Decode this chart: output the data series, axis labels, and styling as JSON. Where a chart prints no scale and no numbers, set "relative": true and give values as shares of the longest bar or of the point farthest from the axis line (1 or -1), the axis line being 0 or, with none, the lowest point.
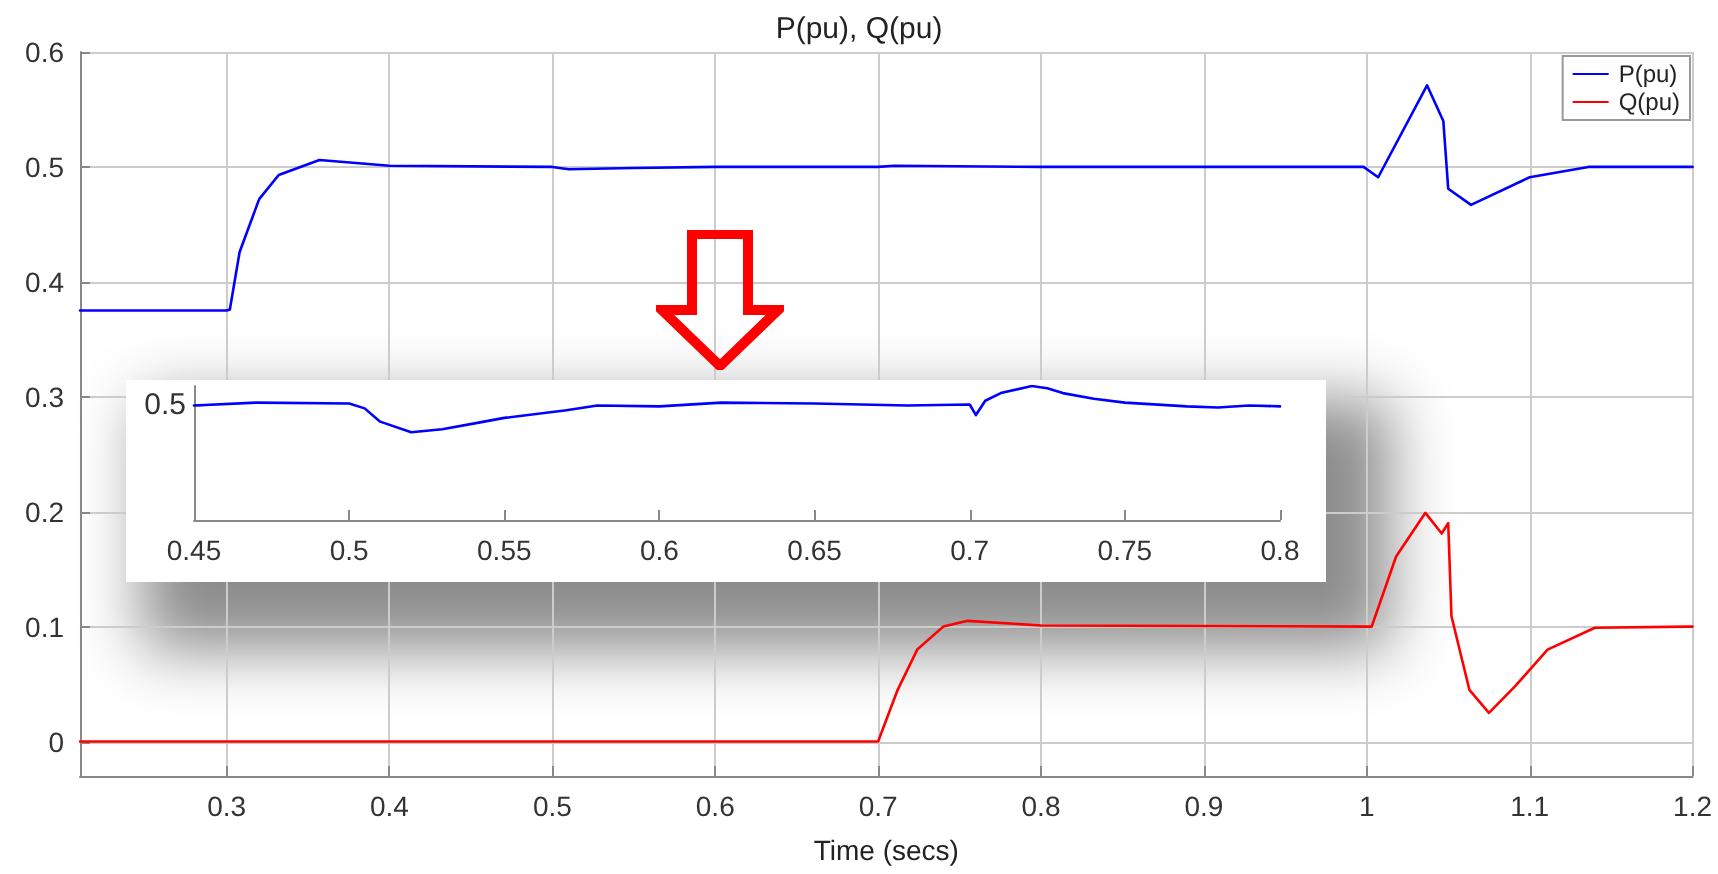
{
  "chart_data": [
    {
      "type": "line",
      "title": "P(pu), Q(pu)",
      "xlabel": "Time (secs)",
      "x": [
        0.21,
        0.3,
        0.302,
        0.308,
        0.32,
        0.332,
        0.357,
        0.4,
        0.5,
        0.51,
        0.55,
        0.6,
        0.7,
        0.71,
        0.8,
        0.9,
        0.998,
        1.007,
        1.037,
        1.047,
        1.05,
        1.064,
        1.1,
        1.136,
        1.2
      ],
      "series": [
        {
          "name": "P(pu)",
          "color": "#0000ff",
          "values": [
            0.375,
            0.375,
            0.376,
            0.426,
            0.472,
            0.493,
            0.506,
            0.501,
            0.5,
            0.498,
            0.499,
            0.5,
            0.5,
            0.501,
            0.5,
            0.5,
            0.5,
            0.491,
            0.571,
            0.54,
            0.481,
            0.467,
            0.491,
            0.5,
            0.5
          ]
        },
        {
          "name": "Q(pu)",
          "color": "#ff0000",
          "x": [
            0.21,
            0.3,
            0.7,
            0.712,
            0.724,
            0.74,
            0.755,
            0.8,
            1.003,
            1.018,
            1.036,
            1.046,
            1.05,
            1.052,
            1.063,
            1.075,
            1.091,
            1.111,
            1.14,
            1.197,
            1.2
          ],
          "values": [
            0,
            0,
            0,
            0.045,
            0.08,
            0.1,
            0.105,
            0.101,
            0.1,
            0.161,
            0.199,
            0.181,
            0.19,
            0.109,
            0.045,
            0.025,
            0.048,
            0.08,
            0.099,
            0.1,
            0.1
          ]
        }
      ],
      "xlim": [
        0.21,
        1.2
      ],
      "xticks": [
        0.3,
        0.4,
        0.5,
        0.6,
        0.7,
        0.8,
        0.9,
        1,
        1.1,
        1.2
      ],
      "ylim": [
        -0.03,
        0.6
      ],
      "yticks": [
        0,
        0.1,
        0.2,
        0.3,
        0.4,
        0.5,
        0.6
      ],
      "grid": true,
      "legend": "top right",
      "marker": "none",
      "line_style": "solid"
    },
    {
      "type": "line",
      "relative": true,
      "tick_labels": "x",
      "grid": false,
      "marker": "none",
      "x": [
        0.45,
        0.47,
        0.5,
        0.505,
        0.51,
        0.52,
        0.53,
        0.54,
        0.55,
        0.57,
        0.58,
        0.6,
        0.62,
        0.65,
        0.68,
        0.7,
        0.702,
        0.705,
        0.71,
        0.72,
        0.725,
        0.73,
        0.74,
        0.75,
        0.77,
        0.78,
        0.79,
        0.8
      ],
      "series": [
        {
          "color": "#0000ff",
          "values": [
            0.855,
            0.876,
            0.869,
            0.833,
            0.734,
            0.655,
            0.677,
            0.719,
            0.762,
            0.819,
            0.855,
            0.848,
            0.876,
            0.869,
            0.855,
            0.862,
            0.783,
            0.89,
            0.947,
            1,
            0.983,
            0.947,
            0.905,
            0.876,
            0.848,
            0.84,
            0.855,
            0.848
          ]
        }
      ],
      "xlim": [
        0.45,
        0.8
      ],
      "xticks": [
        0.45,
        0.5,
        0.55,
        0.6,
        0.65,
        0.7,
        0.75,
        0.8
      ],
      "annotations": [
        {
          "text": "0.5",
          "x": 0.45,
          "y": 0.855
        }
      ]
    }
  ]
}
